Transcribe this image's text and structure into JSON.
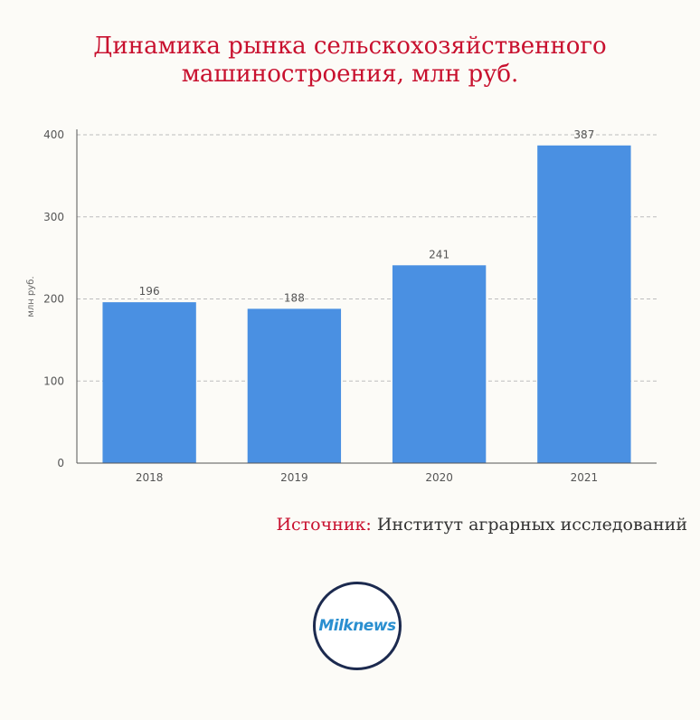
{
  "title": {
    "line1": "Динамика рынка сельскохозяйственного",
    "line2": "машиностроения, млн руб."
  },
  "chart_data": {
    "type": "bar",
    "categories": [
      "2018",
      "2019",
      "2020",
      "2021"
    ],
    "values": [
      196,
      188,
      241,
      387
    ],
    "ylabel": "млн руб.",
    "ylim": [
      0,
      400
    ],
    "yticks": [
      0,
      100,
      200,
      300,
      400
    ],
    "grid": true,
    "bar_color": "#4a90e2",
    "data_labels": true
  },
  "source": {
    "label": "Источник:",
    "value": "Институт аграрных исследований"
  },
  "logo": {
    "text": "Milknews"
  },
  "colors": {
    "accent": "#c8102e",
    "bar": "#4a90e2",
    "logo_border": "#1c2a4f",
    "logo_text": "#2a8fd0"
  }
}
